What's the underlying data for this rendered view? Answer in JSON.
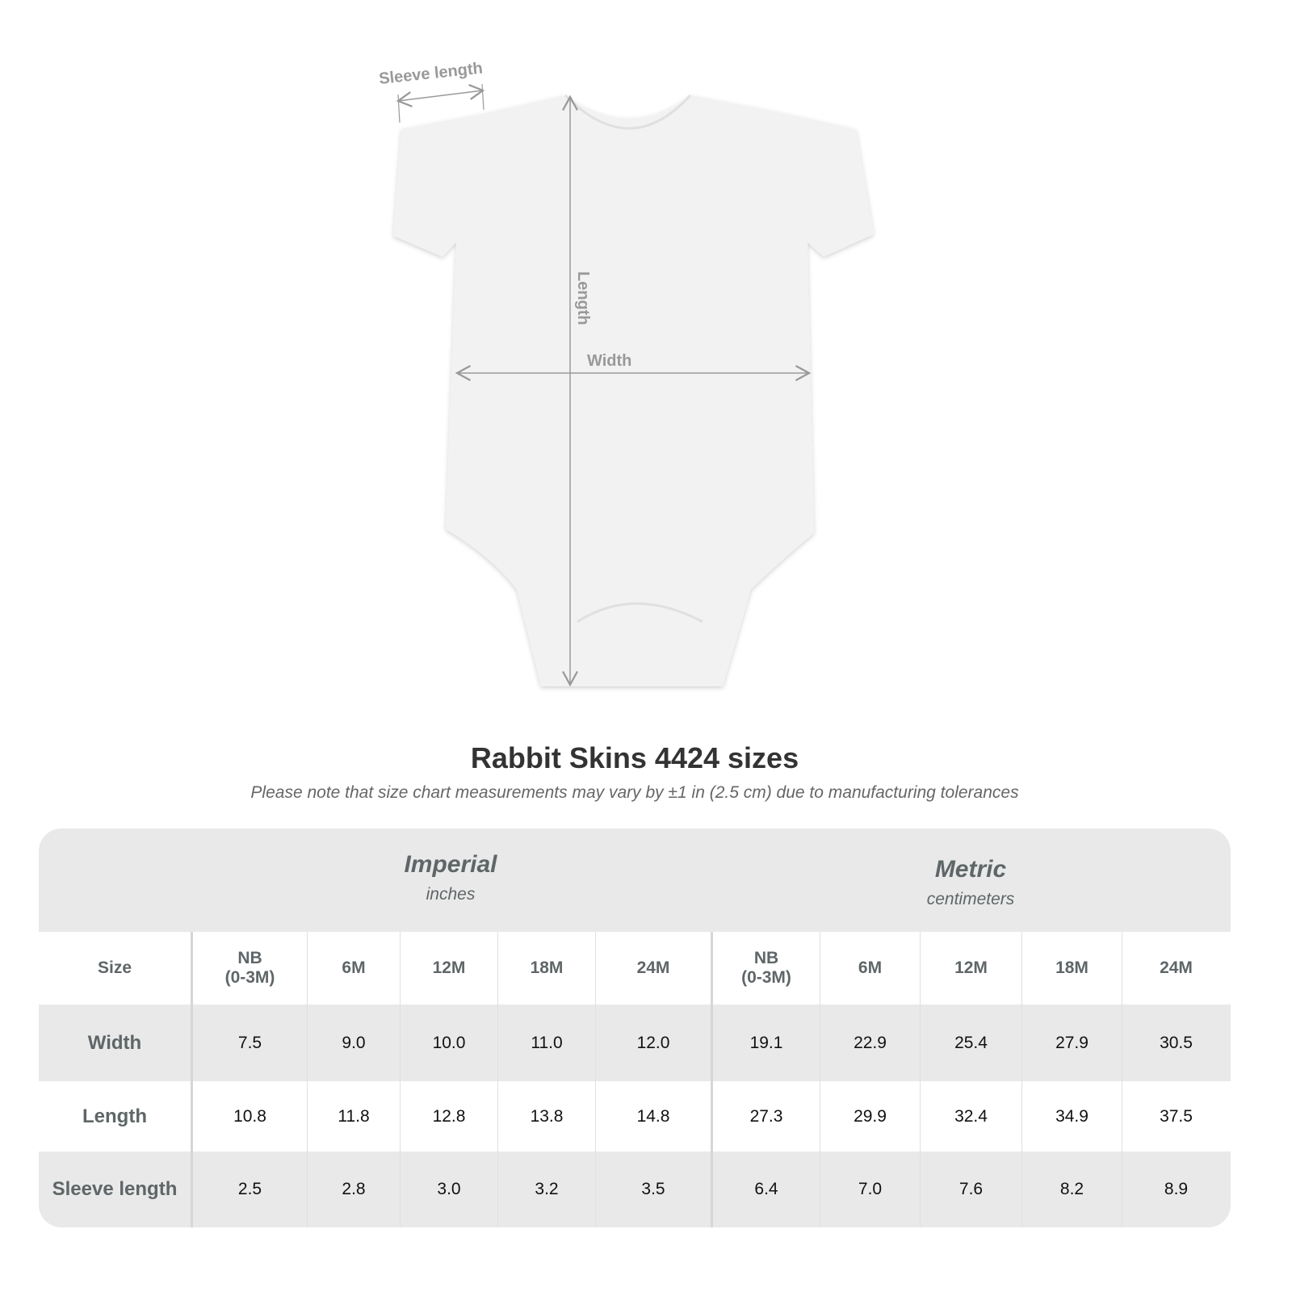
{
  "diagram": {
    "labels": {
      "sleeve": "Sleeve length",
      "length": "Length",
      "width": "Width"
    }
  },
  "title": "Rabbit Skins 4424 sizes",
  "note": "Please note that size chart measurements may vary by ±1 in (2.5 cm) due to manufacturing tolerances",
  "table": {
    "imperial": {
      "name": "Imperial",
      "unit": "inches"
    },
    "metric": {
      "name": "Metric",
      "unit": "centimeters"
    },
    "size_label": "Size",
    "sizes": [
      "NB\n(0-3M)",
      "6M",
      "12M",
      "18M",
      "24M"
    ],
    "rows": [
      {
        "label": "Width",
        "imperial": [
          "7.5",
          "9.0",
          "10.0",
          "11.0",
          "12.0"
        ],
        "metric": [
          "19.1",
          "22.9",
          "25.4",
          "27.9",
          "30.5"
        ]
      },
      {
        "label": "Length",
        "imperial": [
          "10.8",
          "11.8",
          "12.8",
          "13.8",
          "14.8"
        ],
        "metric": [
          "27.3",
          "29.9",
          "32.4",
          "34.9",
          "37.5"
        ]
      },
      {
        "label": "Sleeve length",
        "imperial": [
          "2.5",
          "2.8",
          "3.0",
          "3.2",
          "3.5"
        ],
        "metric": [
          "6.4",
          "7.0",
          "7.6",
          "8.2",
          "8.9"
        ]
      }
    ]
  }
}
